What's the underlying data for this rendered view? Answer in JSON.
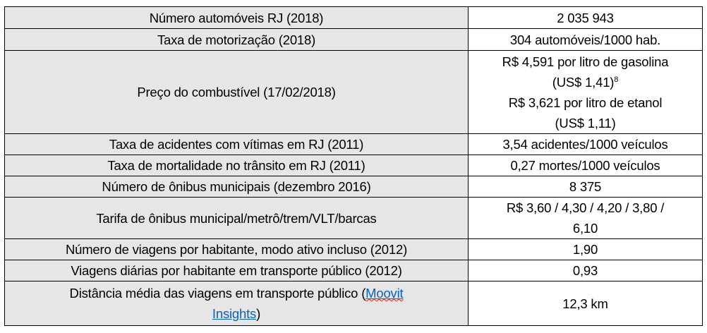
{
  "rows": [
    {
      "label": "Número automóveis RJ (2018)",
      "value": "2 035 943"
    },
    {
      "label": "Taxa de motorização (2018)",
      "value": "304 automóveis/1000 hab."
    },
    {
      "label": "Preço do combustível (17/02/2018)",
      "value_lines": [
        "R$ 4,591 por litro de gasolina",
        "(US$ 1,41)",
        "R$ 3,621 por litro de etanol",
        "(US$ 1,11)"
      ],
      "footnote": "8"
    },
    {
      "label": "Taxa de acidentes com vítimas em RJ (2011)",
      "value": "3,54 acidentes/1000 veículos"
    },
    {
      "label": "Taxa de mortalidade no trânsito em RJ (2011)",
      "value": "0,27 mortes/1000 veículos"
    },
    {
      "label": "Número de ônibus municipais (dezembro 2016)",
      "value": "8 375"
    },
    {
      "label": "Tarifa de ônibus municipal/metrô/trem/VLT/barcas",
      "value_lines": [
        "R$ 3,60 / 4,30 / 4,20 / 3,80 /",
        "6,10"
      ]
    },
    {
      "label": "Número de viagens por habitante, modo ativo incluso (2012)",
      "value": "1,90"
    },
    {
      "label": "Viagens diárias por habitante em transporte público (2012)",
      "value": "0,93"
    },
    {
      "label_prefix": "Distância média das viagens em transporte público (",
      "link_word1": "Moovit",
      "link_word2": "Insights",
      "label_suffix": ")",
      "value": "12,3 km"
    }
  ],
  "colors": {
    "label_bg": "#e7e6e6",
    "link": "#0563c1"
  }
}
